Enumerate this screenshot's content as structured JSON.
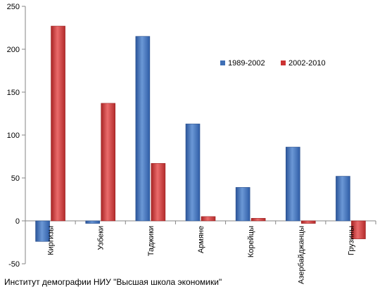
{
  "chart_data": {
    "type": "bar",
    "title": "",
    "xlabel": "",
    "ylabel": "",
    "categories": [
      "Киргизы",
      "Узбеки",
      "Таджики",
      "Армяне",
      "Корейцы",
      "Азербайджанцы",
      "Грузины"
    ],
    "series": [
      {
        "name": "1989-2002",
        "color": "#3f6fb5",
        "values": [
          -24,
          -3,
          215,
          113,
          39,
          86,
          52
        ]
      },
      {
        "name": "2002-2010",
        "color": "#cc3333",
        "values": [
          227,
          137,
          67,
          5,
          3,
          -3,
          -21
        ]
      }
    ],
    "ylim": [
      -50,
      250
    ],
    "yticks": [
      -50,
      0,
      50,
      100,
      150,
      200,
      250
    ],
    "grid": false,
    "legend_position": "top-right"
  },
  "footer": {
    "source": "Институт демографии НИУ \"Высшая школа экономики\""
  }
}
